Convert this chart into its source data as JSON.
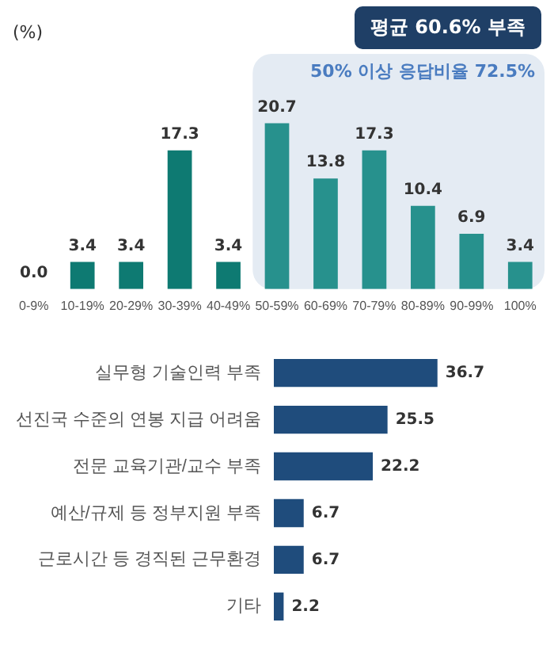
{
  "chart_data": [
    {
      "type": "bar",
      "ylabel": "(%)",
      "annotations": [
        "평균 60.6% 부족"
      ],
      "categories": [
        "0-9%",
        "10-19%",
        "20-29%",
        "30-39%",
        "40-49%",
        "50-59%",
        "60-69%",
        "70-79%",
        "80-89%",
        "90-99%",
        "100%"
      ],
      "values": [
        0.0,
        3.4,
        3.4,
        17.3,
        3.4,
        20.7,
        13.8,
        17.3,
        10.4,
        6.9,
        3.4
      ],
      "colors": [
        "#0e7a72",
        "#0e7a72",
        "#0e7a72",
        "#0e7a72",
        "#0e7a72",
        "#27918d",
        "#27918d",
        "#27918d",
        "#27918d",
        "#27918d",
        "#27918d"
      ],
      "bands": [
        {
          "axis": "x",
          "from": "50-59%",
          "to": "100%",
          "label": "50% 이상 응답비율 72.5%",
          "color": "#e4ebf3"
        }
      ],
      "value_labels": [
        "0.0",
        "3.4",
        "3.4",
        "17.3",
        "3.4",
        "20.7",
        "13.8",
        "17.3",
        "10.4",
        "6.9",
        "3.4"
      ],
      "grid": false,
      "legend": false,
      "tick_labels": "x"
    },
    {
      "type": "bar",
      "orientation": "horizontal",
      "categories": [
        "실무형 기술인력 부족",
        "선진국 수준의 연봉 지급 어려움",
        "전문 교육기관/교수 부족",
        "예산/규제 등 정부지원 부족",
        "근로시간 등 경직된 근무환경",
        "기타"
      ],
      "values": [
        36.7,
        25.5,
        22.2,
        6.7,
        6.7,
        2.2
      ],
      "color": "#1f4c7c",
      "data_labels": true,
      "grid": false,
      "legend": false,
      "tick_labels": "y"
    }
  ]
}
